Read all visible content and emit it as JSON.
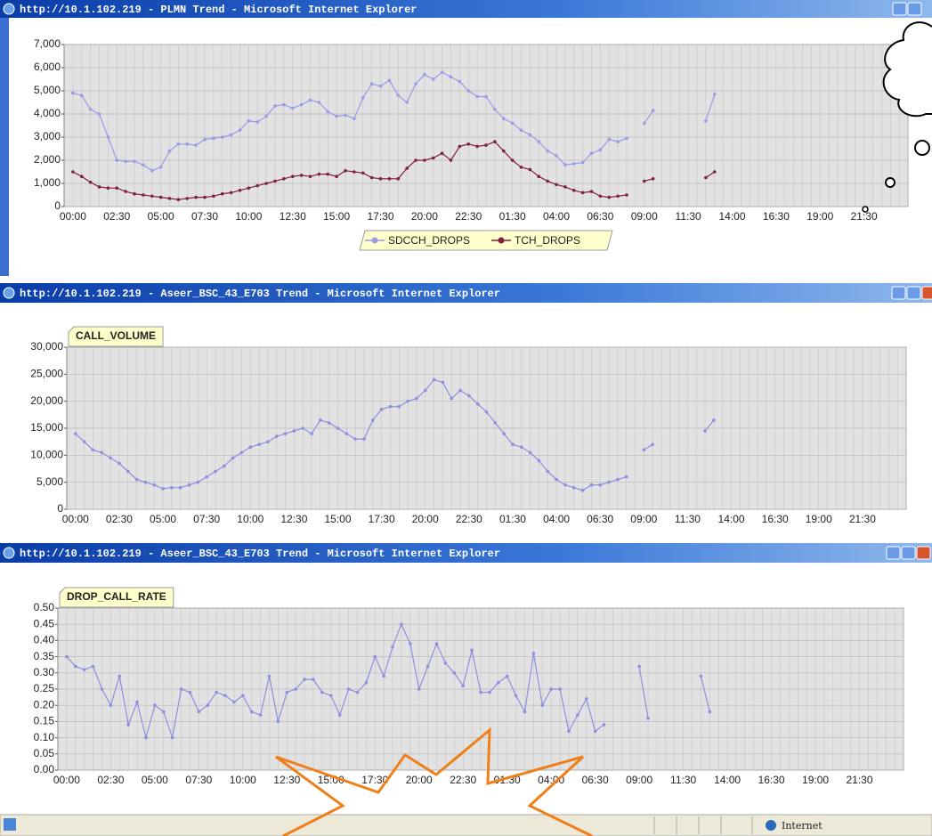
{
  "windows": [
    {
      "title": "http://10.1.102.219 - PLMN Trend - Microsoft Internet Explorer"
    },
    {
      "title": "http://10.1.102.219 - Aseer_BSC_43_E703 Trend - Microsoft Internet Explorer"
    },
    {
      "title": "http://10.1.102.219 - Aseer_BSC_43_E703 Trend - Microsoft Internet Explorer"
    }
  ],
  "status_bar": {
    "zone": "Internet"
  },
  "chart_data": [
    {
      "type": "line",
      "legend": "bottom",
      "grid": true,
      "categories": [
        "00:00",
        null,
        null,
        null,
        null,
        "02:30",
        null,
        null,
        null,
        null,
        "05:00",
        null,
        null,
        null,
        null,
        "07:30",
        null,
        null,
        null,
        null,
        "10:00",
        null,
        null,
        null,
        null,
        "12:30",
        null,
        null,
        null,
        null,
        "15:00",
        null,
        null,
        null,
        null,
        "17:30",
        null,
        null,
        null,
        null,
        "20:00",
        null,
        null,
        null,
        null,
        "22:30",
        null,
        null,
        null,
        null,
        "01:30",
        null,
        null,
        null,
        null,
        "04:00",
        null,
        null,
        null,
        null,
        "06:30",
        null,
        null,
        null,
        null,
        "09:00",
        null,
        null,
        null,
        null,
        "11:30",
        null,
        null,
        null,
        null,
        "14:00",
        null,
        null,
        null,
        null,
        "16:30",
        null,
        null,
        null,
        null,
        "19:00",
        null,
        null,
        null,
        null,
        "21:30",
        null,
        null,
        null,
        null,
        null
      ],
      "ylim": [
        0,
        7000
      ],
      "yticks": [
        0,
        {
          "value": 1000,
          "label": "1,000"
        },
        {
          "value": 2000,
          "label": "2,000"
        },
        {
          "value": 3000,
          "label": "3,000"
        },
        {
          "value": 4000,
          "label": "4,000"
        },
        {
          "value": 5000,
          "label": "5,000"
        },
        {
          "value": 6000,
          "label": "6,000"
        },
        {
          "value": 7000,
          "label": "7,000"
        }
      ],
      "series": [
        {
          "name": "SDCCH_DROPS",
          "color": "#9a9ae8",
          "values": [
            4900,
            4800,
            4200,
            4000,
            3000,
            2000,
            1950,
            1950,
            1800,
            1550,
            1700,
            2400,
            2700,
            2700,
            2650,
            2900,
            2950,
            3000,
            3100,
            3300,
            3700,
            3650,
            3900,
            4350,
            4400,
            4250,
            4400,
            4600,
            4500,
            4100,
            3900,
            3950,
            3800,
            4700,
            5300,
            5200,
            5450,
            4800,
            4500,
            5300,
            5700,
            5500,
            5800,
            5600,
            5400,
            5000,
            4750,
            4750,
            4200,
            3800,
            3600,
            3300,
            3100,
            2800,
            2400,
            2200,
            1800,
            1850,
            1900,
            2300,
            2450,
            2900,
            2800,
            2950,
            null,
            3600,
            4150,
            null,
            null,
            null,
            null,
            null,
            3700,
            4850,
            null,
            null,
            null,
            null,
            null,
            null,
            null,
            null,
            null,
            null,
            null,
            null,
            null,
            null,
            null,
            null,
            null,
            null,
            null,
            null,
            null,
            null
          ]
        },
        {
          "name": "TCH_DROPS",
          "color": "#80203c",
          "values": [
            1500,
            1300,
            1050,
            850,
            800,
            800,
            650,
            550,
            500,
            450,
            400,
            350,
            300,
            350,
            400,
            400,
            450,
            550,
            600,
            700,
            800,
            900,
            1000,
            1100,
            1200,
            1300,
            1350,
            1300,
            1400,
            1400,
            1300,
            1550,
            1500,
            1450,
            1250,
            1200,
            1200,
            1200,
            1650,
            2000,
            2000,
            2100,
            2300,
            2000,
            2600,
            2700,
            2600,
            2650,
            2800,
            2400,
            2000,
            1700,
            1600,
            1300,
            1100,
            950,
            850,
            700,
            600,
            650,
            450,
            400,
            450,
            500,
            null,
            1100,
            1200,
            null,
            null,
            null,
            null,
            null,
            1250,
            1500,
            null,
            null,
            null,
            null,
            null,
            null,
            null,
            null,
            null,
            null,
            null,
            null,
            null,
            null,
            null,
            null,
            null,
            null,
            null,
            null,
            null,
            null
          ]
        }
      ]
    },
    {
      "type": "line",
      "legend": "top-left",
      "grid": true,
      "categories": [
        "00:00",
        null,
        null,
        null,
        null,
        "02:30",
        null,
        null,
        null,
        null,
        "05:00",
        null,
        null,
        null,
        null,
        "07:30",
        null,
        null,
        null,
        null,
        "10:00",
        null,
        null,
        null,
        null,
        "12:30",
        null,
        null,
        null,
        null,
        "15:00",
        null,
        null,
        null,
        null,
        "17:30",
        null,
        null,
        null,
        null,
        "20:00",
        null,
        null,
        null,
        null,
        "22:30",
        null,
        null,
        null,
        null,
        "01:30",
        null,
        null,
        null,
        null,
        "04:00",
        null,
        null,
        null,
        null,
        "06:30",
        null,
        null,
        null,
        null,
        "09:00",
        null,
        null,
        null,
        null,
        "11:30",
        null,
        null,
        null,
        null,
        "14:00",
        null,
        null,
        null,
        null,
        "16:30",
        null,
        null,
        null,
        null,
        "19:00",
        null,
        null,
        null,
        null,
        "21:30",
        null,
        null,
        null,
        null,
        null
      ],
      "ylim": [
        0,
        30000
      ],
      "yticks": [
        0,
        {
          "value": 5000,
          "label": "5,000"
        },
        {
          "value": 10000,
          "label": "10,000"
        },
        {
          "value": 15000,
          "label": "15,000"
        },
        {
          "value": 20000,
          "label": "20,000"
        },
        {
          "value": 25000,
          "label": "25,000"
        },
        {
          "value": 30000,
          "label": "30,000"
        }
      ],
      "series": [
        {
          "name": "CALL_VOLUME",
          "color": "#8e8ee0",
          "values": [
            14000,
            12500,
            11000,
            10500,
            9500,
            8500,
            7000,
            5500,
            5000,
            4500,
            3800,
            4000,
            4000,
            4500,
            5000,
            6000,
            7000,
            8000,
            9500,
            10500,
            11500,
            12000,
            12500,
            13500,
            14000,
            14500,
            15000,
            14000,
            16500,
            16000,
            15000,
            14000,
            13000,
            13000,
            16500,
            18500,
            19000,
            19000,
            20000,
            20500,
            22000,
            24000,
            23500,
            20500,
            22000,
            21000,
            19500,
            18000,
            16000,
            14000,
            12000,
            11500,
            10500,
            9000,
            7000,
            5500,
            4500,
            4000,
            3500,
            4500,
            4500,
            5000,
            5500,
            6000,
            null,
            11000,
            12000,
            null,
            null,
            null,
            null,
            null,
            14500,
            16500,
            null,
            null,
            null,
            null,
            null,
            null,
            null,
            null,
            null,
            null,
            null,
            null,
            null,
            null,
            null,
            null,
            null,
            null,
            null,
            null,
            null,
            null
          ]
        }
      ]
    },
    {
      "type": "line",
      "legend": "top-left",
      "grid": true,
      "categories": [
        "00:00",
        null,
        null,
        null,
        null,
        "02:30",
        null,
        null,
        null,
        null,
        "05:00",
        null,
        null,
        null,
        null,
        "07:30",
        null,
        null,
        null,
        null,
        "10:00",
        null,
        null,
        null,
        null,
        "12:30",
        null,
        null,
        null,
        null,
        "15:00",
        null,
        null,
        null,
        null,
        "17:30",
        null,
        null,
        null,
        null,
        "20:00",
        null,
        null,
        null,
        null,
        "22:30",
        null,
        null,
        null,
        null,
        "01:30",
        null,
        null,
        null,
        null,
        "04:00",
        null,
        null,
        null,
        null,
        "06:30",
        null,
        null,
        null,
        null,
        "09:00",
        null,
        null,
        null,
        null,
        "11:30",
        null,
        null,
        null,
        null,
        "14:00",
        null,
        null,
        null,
        null,
        "16:30",
        null,
        null,
        null,
        null,
        "19:00",
        null,
        null,
        null,
        null,
        "21:30",
        null,
        null,
        null,
        null,
        null
      ],
      "ylim": [
        0,
        0.5
      ],
      "yticks": [
        {
          "value": 0,
          "label": "0.00"
        },
        0.05,
        {
          "value": 0.1,
          "label": "0.10"
        },
        0.15,
        {
          "value": 0.2,
          "label": "0.20"
        },
        0.25,
        {
          "value": 0.3,
          "label": "0.30"
        },
        0.35,
        {
          "value": 0.4,
          "label": "0.40"
        },
        0.45,
        {
          "value": 0.5,
          "label": "0.50"
        }
      ],
      "series": [
        {
          "name": "DROP_CALL_RATE",
          "color": "#8e8ee0",
          "values": [
            0.35,
            0.32,
            0.31,
            0.32,
            0.25,
            0.2,
            0.29,
            0.14,
            0.21,
            0.1,
            0.2,
            0.18,
            0.1,
            0.25,
            0.24,
            0.18,
            0.2,
            0.24,
            0.23,
            0.21,
            0.23,
            0.18,
            0.17,
            0.29,
            0.15,
            0.24,
            0.25,
            0.28,
            0.28,
            0.24,
            0.23,
            0.17,
            0.25,
            0.24,
            0.27,
            0.35,
            0.29,
            0.38,
            0.45,
            0.39,
            0.25,
            0.32,
            0.39,
            0.33,
            0.3,
            0.26,
            0.37,
            0.24,
            0.24,
            0.27,
            0.29,
            0.23,
            0.18,
            0.36,
            0.2,
            0.25,
            0.25,
            0.12,
            0.17,
            0.22,
            0.12,
            0.14,
            null,
            null,
            null,
            0.32,
            0.16,
            null,
            null,
            null,
            null,
            null,
            0.29,
            0.18,
            null,
            null,
            null,
            null,
            null,
            null,
            null,
            null,
            null,
            null,
            null,
            null,
            null,
            null,
            null,
            null,
            null,
            null,
            null,
            null,
            null,
            null
          ]
        }
      ]
    }
  ]
}
